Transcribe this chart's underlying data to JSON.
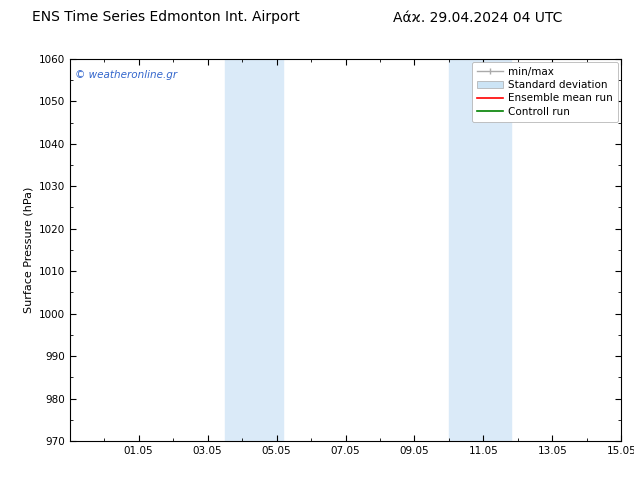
{
  "title_left": "ENS Time Series Edmonton Int. Airport",
  "title_right": "Αάϰ. 29.04.2024 04 UTC",
  "ylabel": "Surface Pressure (hPa)",
  "ylim": [
    970,
    1060
  ],
  "yticks": [
    970,
    980,
    990,
    1000,
    1010,
    1020,
    1030,
    1040,
    1050,
    1060
  ],
  "xtick_labels": [
    "01.05",
    "03.05",
    "05.05",
    "07.05",
    "09.05",
    "11.05",
    "13.05",
    "15.05"
  ],
  "xtick_positions": [
    2,
    4,
    6,
    8,
    10,
    12,
    14,
    16
  ],
  "shaded_regions": [
    {
      "x_start": 4.5,
      "x_end": 6.2,
      "color": "#daeaf8"
    },
    {
      "x_start": 11.0,
      "x_end": 12.8,
      "color": "#daeaf8"
    }
  ],
  "watermark": "© weatheronline.gr",
  "watermark_color": "#3366cc",
  "bg_color": "#ffffff",
  "plot_bg_color": "#ffffff",
  "grid_color": "#cccccc",
  "spine_color": "#000000",
  "tick_color": "#000000",
  "title_fontsize": 10,
  "label_fontsize": 8,
  "tick_fontsize": 7.5,
  "legend_fontsize": 7.5
}
